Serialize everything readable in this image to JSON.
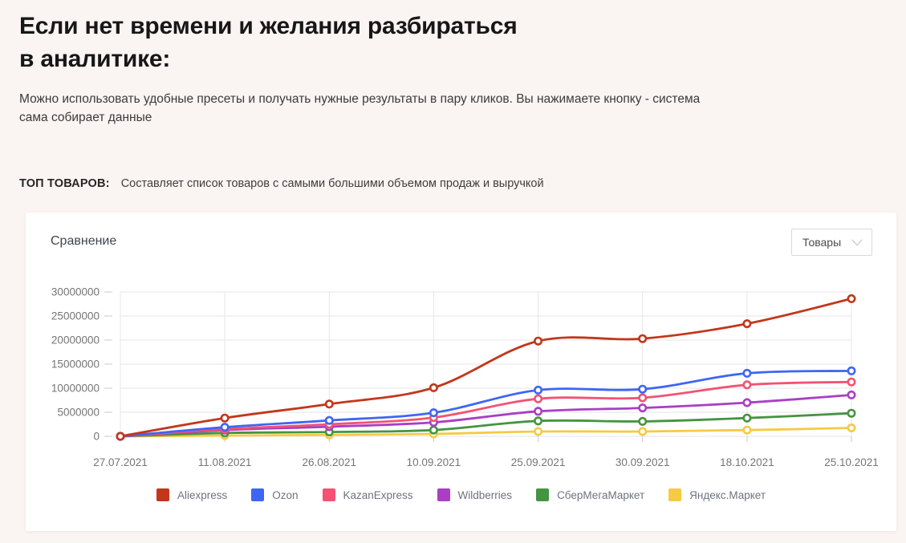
{
  "header": {
    "title_line1": "Если нет времени и желания разбираться",
    "title_line2": "в аналитике:",
    "subtitle": "Можно использовать удобные пресеты и получать нужные результаты в пару кликов. Вы нажимаете кнопку - система сама собирает данные"
  },
  "preset": {
    "label": "ТОП ТОВАРОВ:",
    "description": "Составляет список товаров с самыми большими объемом продаж и выручкой"
  },
  "card": {
    "title": "Сравнение",
    "dropdown": {
      "value": "Товары",
      "icon": "chevron-down-icon"
    }
  },
  "chart_data": {
    "type": "line",
    "curve": "smooth",
    "marker": "open-circle",
    "grid": true,
    "grid_color": "#e6e6e6",
    "tick_color": "#c9c9c9",
    "axis_text_color": "#757575",
    "legend_position": "bottom",
    "x": [
      "27.07.2021",
      "11.08.2021",
      "26.08.2021",
      "10.09.2021",
      "25.09.2021",
      "30.09.2021",
      "18.10.2021",
      "25.10.2021"
    ],
    "ylim": [
      0,
      30000000
    ],
    "ytick_step": 5000000,
    "ytick_labels": [
      "0",
      "5000000",
      "10000000",
      "15000000",
      "20000000",
      "25000000",
      "30000000"
    ],
    "series": [
      {
        "name": "Aliexpress",
        "color": "#c2371c",
        "values": [
          0,
          3800000,
          6700000,
          10100000,
          19800000,
          20300000,
          23400000,
          28600000
        ]
      },
      {
        "name": "Ozon",
        "color": "#3e66f3",
        "values": [
          0,
          1900000,
          3300000,
          4900000,
          9600000,
          9800000,
          13100000,
          13600000
        ]
      },
      {
        "name": "KazanExpress",
        "color": "#f35274",
        "values": [
          0,
          1500000,
          2500000,
          3900000,
          7800000,
          8000000,
          10700000,
          11300000
        ]
      },
      {
        "name": "Wildberries",
        "color": "#a93fc4",
        "values": [
          0,
          1300000,
          2000000,
          2900000,
          5200000,
          5900000,
          7000000,
          8600000
        ]
      },
      {
        "name": "СберМегаМаркет",
        "color": "#459441",
        "values": [
          0,
          700000,
          900000,
          1300000,
          3200000,
          3100000,
          3800000,
          4800000
        ]
      },
      {
        "name": "Яндекс.Маркет",
        "color": "#f5ca45",
        "values": [
          0,
          150000,
          300000,
          500000,
          1000000,
          1000000,
          1300000,
          1750000
        ]
      }
    ]
  }
}
